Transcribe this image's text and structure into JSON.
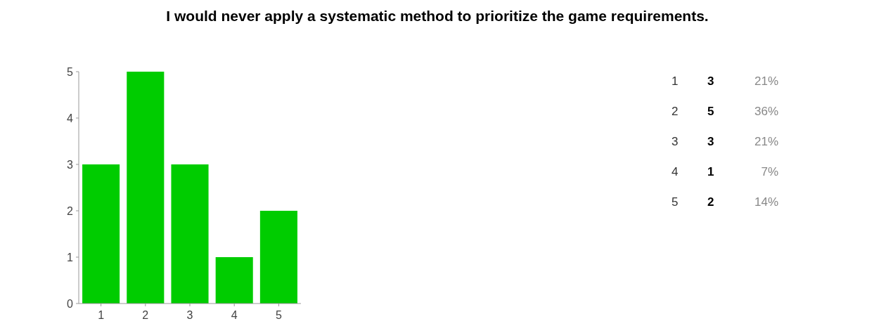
{
  "chart_data": [
    {
      "type": "bar",
      "title": "I would never apply a systematic method to prioritize the game requirements.",
      "categories": [
        "1",
        "2",
        "3",
        "4",
        "5"
      ],
      "values": [
        3,
        5,
        3,
        1,
        2
      ],
      "color": "#00cc00",
      "ylim": [
        0,
        5
      ],
      "yticks": [
        0,
        1,
        2,
        3,
        4,
        5
      ],
      "annotations": [
        "1",
        "3",
        "21%",
        "2",
        "5",
        "36%",
        "3",
        "3",
        "21%",
        "4",
        "1",
        "7%",
        "5",
        "2",
        "14%"
      ]
    }
  ]
}
